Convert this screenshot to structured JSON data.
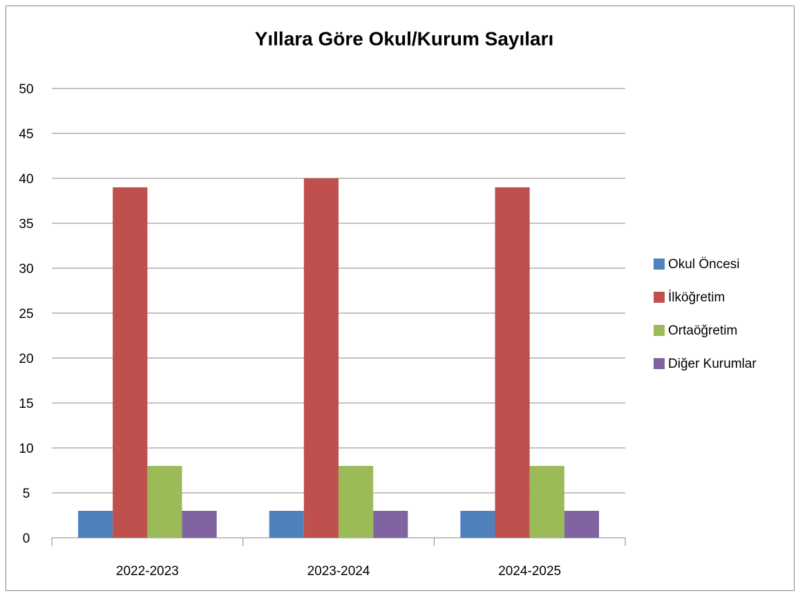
{
  "chart_data": {
    "type": "bar",
    "title": "Yıllara Göre Okul/Kurum Sayıları",
    "categories": [
      "2022-2023",
      "2023-2024",
      "2024-2025"
    ],
    "series": [
      {
        "name": "Okul Öncesi",
        "color": "#4f81bd",
        "values": [
          3,
          3,
          3
        ]
      },
      {
        "name": "İlköğretim",
        "color": "#c0504d",
        "values": [
          39,
          40,
          39
        ]
      },
      {
        "name": "Ortaöğretim",
        "color": "#9bbb59",
        "values": [
          8,
          8,
          8
        ]
      },
      {
        "name": "Diğer Kurumlar",
        "color": "#8064a2",
        "values": [
          3,
          3,
          3
        ]
      }
    ],
    "ylim": [
      0,
      50
    ],
    "yticks": [
      0,
      5,
      10,
      15,
      20,
      25,
      30,
      35,
      40,
      45,
      50
    ],
    "grid": true,
    "legend": "right"
  }
}
